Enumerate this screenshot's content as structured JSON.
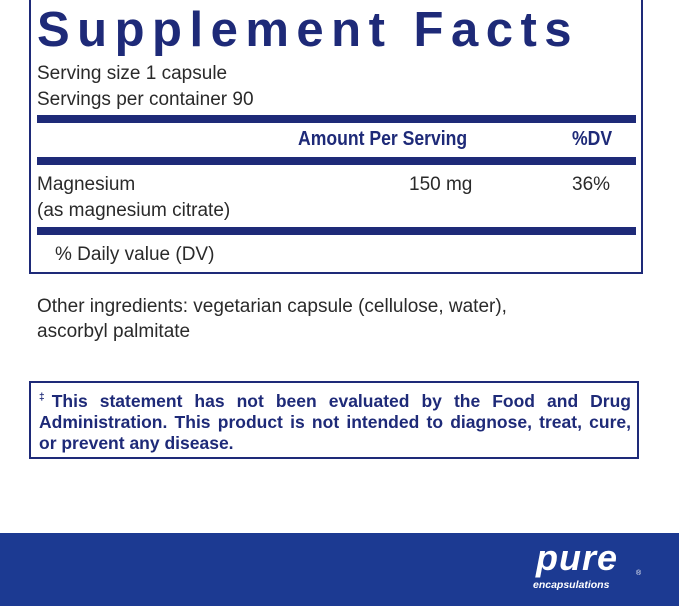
{
  "title": "Supplement Facts",
  "serving_size": "Serving size  1 capsule",
  "servings_per_container": "Servings per container  90",
  "table": {
    "headers": {
      "amount": "Amount Per Serving",
      "dv": "%DV"
    },
    "rows": [
      {
        "name": "Magnesium",
        "sub": "(as magnesium citrate)",
        "amount": "150 mg",
        "dv": "36%"
      }
    ],
    "footnote": "% Daily value (DV)"
  },
  "other_ingredients": [
    "Other ingredients: vegetarian capsule (cellulose, water),",
    "ascorbyl palmitate"
  ],
  "disclaimer": {
    "mark": "‡",
    "text": "This statement has not been evaluated by the Food and Drug Administration. This product is not intended to diagnose, treat, cure, or prevent any disease."
  },
  "brand": {
    "name": "pure",
    "sub": "encapsulations",
    "reg": "®"
  },
  "colors": {
    "navy": "#1e2a78",
    "band": "#1c3a92"
  }
}
